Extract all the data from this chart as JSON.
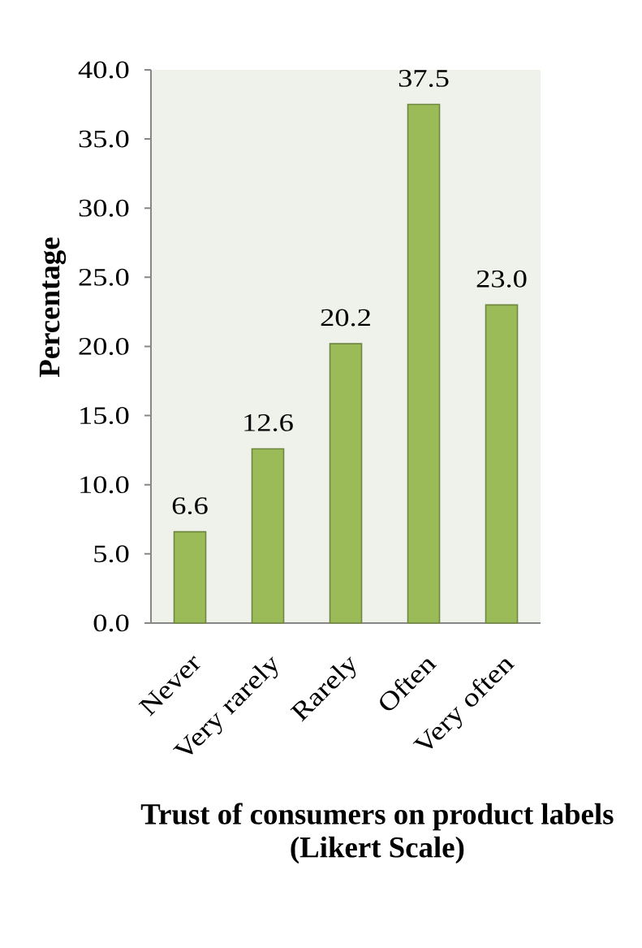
{
  "chart_data": {
    "type": "bar",
    "xlabel": "Trust of consumers on product labels (Likert Scale)",
    "ylabel": "Percentage",
    "categories": [
      "Never",
      "Very rarely",
      "Rarely",
      "Often",
      "Very often"
    ],
    "values": [
      6.6,
      12.6,
      20.2,
      37.5,
      23.0
    ],
    "color": "#9bbb59",
    "value_labels": [
      "6.6",
      "12.6",
      "20.2",
      "37.5",
      "23.0"
    ],
    "ylim": [
      0,
      40
    ],
    "yticks": [
      {
        "value": 0,
        "label": "0.0"
      },
      {
        "value": 5,
        "label": "5.0"
      },
      {
        "value": 10,
        "label": "10.0"
      },
      {
        "value": 15,
        "label": "15.0"
      },
      {
        "value": 20,
        "label": "20.0"
      },
      {
        "value": 25,
        "label": "25.0"
      },
      {
        "value": 30,
        "label": "30.0"
      },
      {
        "value": 35,
        "label": "35.0"
      },
      {
        "value": 40,
        "label": "40.0"
      }
    ]
  }
}
